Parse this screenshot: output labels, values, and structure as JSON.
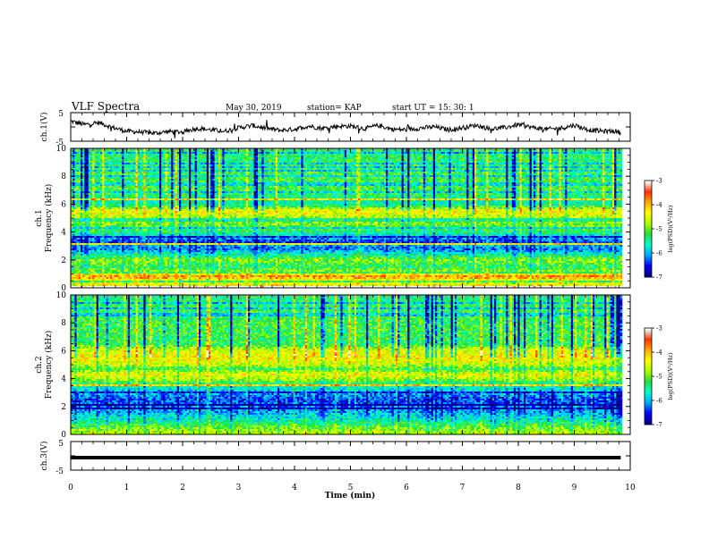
{
  "header": {
    "title": "VLF Spectra",
    "date": "May 30, 2019",
    "station": "station= KAP",
    "start": "start  UT =   15: 30: 1"
  },
  "chart_data": [
    {
      "type": "line",
      "panel": "ch1-waveform",
      "ylabel": "ch.1(V)",
      "ylim": [
        -5,
        5
      ],
      "y_ticklabels": [
        "5",
        "-5"
      ],
      "x_unit": "min",
      "xlim": [
        0,
        10
      ],
      "data_end_min": 9.83,
      "line_color": "#000000",
      "x": [
        0.0,
        0.25,
        0.5,
        0.75,
        1.0,
        1.25,
        1.5,
        1.75,
        2.0,
        2.25,
        2.5,
        2.75,
        3.0,
        3.25,
        3.5,
        3.75,
        4.0,
        4.25,
        4.5,
        4.75,
        5.0,
        5.25,
        5.5,
        5.75,
        6.0,
        6.25,
        6.5,
        6.75,
        7.0,
        7.25,
        7.5,
        7.75,
        8.0,
        8.25,
        8.5,
        8.75,
        9.0,
        9.25,
        9.5,
        9.75,
        9.83
      ],
      "y": [
        2.0,
        0.8,
        1.5,
        -0.2,
        -1.5,
        -1.8,
        -2.2,
        -1.6,
        -1.8,
        -0.5,
        -1.0,
        -1.5,
        -0.3,
        0.5,
        -0.5,
        -1.2,
        -0.8,
        0.3,
        -0.5,
        0.2,
        0.3,
        -0.6,
        0.5,
        -0.8,
        -1.0,
        -0.4,
        0.0,
        -1.0,
        -0.3,
        0.6,
        -0.7,
        -0.3,
        0.8,
        -0.2,
        -0.8,
        -0.5,
        0.6,
        -1.0,
        -1.5,
        -1.5,
        -2.2
      ]
    },
    {
      "type": "heatmap",
      "panel": "ch1-spectrogram",
      "ylabel_lines": [
        "ch.1",
        "Frequency (kHz)"
      ],
      "ylim": [
        0,
        10
      ],
      "y_ticks": [
        0,
        2,
        4,
        6,
        8,
        10
      ],
      "xlim": [
        0,
        10
      ],
      "data_end_min": 9.83,
      "colorbar": {
        "label": "log(PSD)(V²/Hz)",
        "range": [
          -7,
          -3
        ],
        "ticks": [
          -3,
          -4,
          -5,
          -6,
          -7
        ],
        "colormap": [
          "#000080",
          "#0000ff",
          "#00aaff",
          "#00ffcc",
          "#22dd44",
          "#aaff00",
          "#ffff00",
          "#ffaa00",
          "#ff3300",
          "#ffffff"
        ]
      },
      "freq_profile_kHz": [
        0,
        0.5,
        0.8,
        1.0,
        1.2,
        1.5,
        2.0,
        2.4,
        2.8,
        3.0,
        3.3,
        3.6,
        4.0,
        4.5,
        5.0,
        5.5,
        6.0,
        7.0,
        8.0,
        9.0,
        10.0
      ],
      "log_psd_profile": [
        -4.2,
        -4.6,
        -3.7,
        -4.3,
        -4.9,
        -5.3,
        -4.9,
        -5.6,
        -6.3,
        -6.0,
        -6.5,
        -6.0,
        -5.4,
        -5.0,
        -4.8,
        -4.3,
        -5.6,
        -5.2,
        -5.2,
        -5.3,
        -5.4
      ]
    },
    {
      "type": "heatmap",
      "panel": "ch2-spectrogram",
      "ylabel_lines": [
        "ch.2",
        "Frequency (kHz)"
      ],
      "ylim": [
        0,
        10
      ],
      "y_ticks": [
        0,
        2,
        4,
        6,
        8,
        10
      ],
      "xlim": [
        0,
        10
      ],
      "data_end_min": 9.83,
      "colorbar": {
        "label": "log(PSD)(V²/Hz)",
        "range": [
          -7,
          -3
        ],
        "ticks": [
          -3,
          -4,
          -5,
          -6,
          -7
        ],
        "colormap": [
          "#000080",
          "#0000ff",
          "#00aaff",
          "#00ffcc",
          "#22dd44",
          "#aaff00",
          "#ffff00",
          "#ffaa00",
          "#ff3300",
          "#ffffff"
        ]
      },
      "freq_profile_kHz": [
        0,
        0.5,
        1.0,
        1.5,
        2.0,
        2.5,
        3.0,
        3.5,
        4.0,
        4.3,
        4.7,
        5.0,
        5.5,
        6.0,
        6.5,
        7.0,
        8.0,
        9.0,
        10.0
      ],
      "log_psd_profile": [
        -4.6,
        -5.0,
        -5.6,
        -6.0,
        -6.3,
        -6.4,
        -6.0,
        -5.6,
        -4.7,
        -4.4,
        -5.2,
        -4.6,
        -4.3,
        -4.5,
        -5.3,
        -5.2,
        -5.2,
        -5.3,
        -5.4
      ]
    },
    {
      "type": "line",
      "panel": "ch3-waveform",
      "ylabel": "ch.3(V)",
      "ylim": [
        -5,
        5
      ],
      "y_ticklabels": [
        "5",
        "-5"
      ],
      "xlim": [
        0,
        10
      ],
      "data_end_min": 9.83,
      "x": [
        0,
        9.83
      ],
      "y": [
        0,
        0
      ]
    }
  ],
  "x_axis": {
    "label": "Time (min)",
    "ticks": [
      "0",
      "1",
      "2",
      "3",
      "4",
      "5",
      "6",
      "7",
      "8",
      "9",
      "10"
    ]
  }
}
